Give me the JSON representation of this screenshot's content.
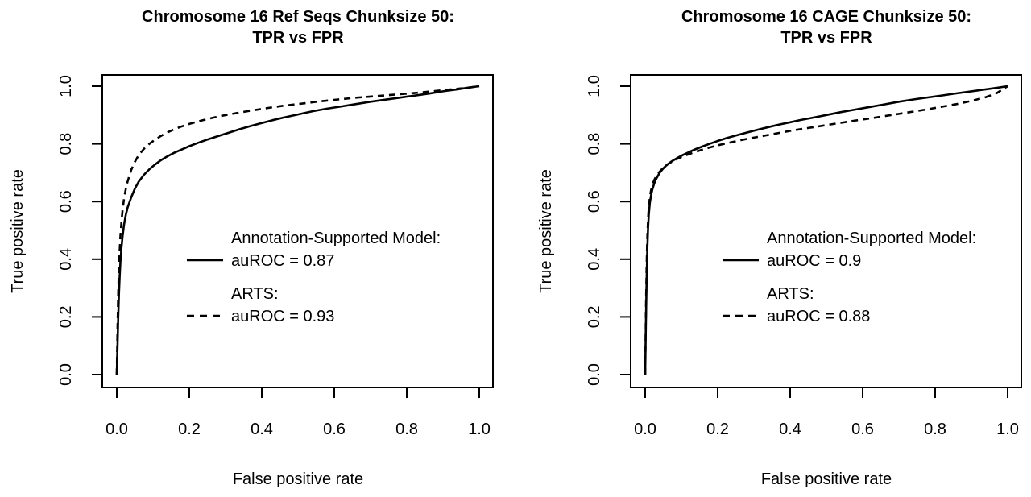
{
  "figure": {
    "background": "#ffffff",
    "ink_color": "#000000"
  },
  "chart_data": [
    {
      "type": "line",
      "title": "Chromosome 16 Ref Seqs Chunksize 50:",
      "subtitle": "TPR vs FPR",
      "xlabel": "False positive rate",
      "ylabel": "True positive rate",
      "xlim": [
        0.0,
        1.0
      ],
      "ylim": [
        0.0,
        1.0
      ],
      "x_tick_labels": [
        "0.0",
        "0.2",
        "0.4",
        "0.6",
        "0.8",
        "1.0"
      ],
      "y_tick_labels": [
        "0.0",
        "0.2",
        "0.4",
        "0.6",
        "0.8",
        "1.0"
      ],
      "grid": false,
      "legend_position": "center-right-inside",
      "legend": {
        "entries": [
          {
            "label": "Annotation-Supported Model:",
            "value": "auROC = 0.87",
            "line_style": "solid"
          },
          {
            "label": "ARTS:",
            "value": "auROC = 0.93",
            "line_style": "dashed"
          }
        ]
      },
      "series": [
        {
          "name": "Annotation-Supported Model",
          "auROC": 0.87,
          "line_style": "solid",
          "points": [
            [
              0,
              0
            ],
            [
              0.002,
              0.1
            ],
            [
              0.004,
              0.2
            ],
            [
              0.006,
              0.28
            ],
            [
              0.008,
              0.34
            ],
            [
              0.01,
              0.39
            ],
            [
              0.013,
              0.44
            ],
            [
              0.016,
              0.48
            ],
            [
              0.02,
              0.52
            ],
            [
              0.025,
              0.555
            ],
            [
              0.03,
              0.58
            ],
            [
              0.04,
              0.615
            ],
            [
              0.05,
              0.645
            ],
            [
              0.06,
              0.668
            ],
            [
              0.075,
              0.693
            ],
            [
              0.09,
              0.712
            ],
            [
              0.105,
              0.728
            ],
            [
              0.12,
              0.742
            ],
            [
              0.14,
              0.757
            ],
            [
              0.16,
              0.77
            ],
            [
              0.18,
              0.781
            ],
            [
              0.2,
              0.792
            ],
            [
              0.225,
              0.804
            ],
            [
              0.25,
              0.815
            ],
            [
              0.28,
              0.827
            ],
            [
              0.31,
              0.839
            ],
            [
              0.34,
              0.851
            ],
            [
              0.37,
              0.862
            ],
            [
              0.4,
              0.872
            ],
            [
              0.43,
              0.882
            ],
            [
              0.46,
              0.891
            ],
            [
              0.5,
              0.902
            ],
            [
              0.54,
              0.913
            ],
            [
              0.58,
              0.922
            ],
            [
              0.62,
              0.93
            ],
            [
              0.66,
              0.938
            ],
            [
              0.7,
              0.946
            ],
            [
              0.74,
              0.953
            ],
            [
              0.78,
              0.96
            ],
            [
              0.82,
              0.967
            ],
            [
              0.86,
              0.974
            ],
            [
              0.9,
              0.982
            ],
            [
              0.94,
              0.989
            ],
            [
              0.97,
              0.995
            ],
            [
              1,
              1
            ]
          ]
        },
        {
          "name": "ARTS",
          "auROC": 0.93,
          "line_style": "dashed",
          "points": [
            [
              0,
              0
            ],
            [
              0.002,
              0.16
            ],
            [
              0.004,
              0.28
            ],
            [
              0.006,
              0.37
            ],
            [
              0.008,
              0.43
            ],
            [
              0.01,
              0.48
            ],
            [
              0.013,
              0.53
            ],
            [
              0.016,
              0.57
            ],
            [
              0.02,
              0.61
            ],
            [
              0.025,
              0.645
            ],
            [
              0.03,
              0.67
            ],
            [
              0.04,
              0.71
            ],
            [
              0.05,
              0.738
            ],
            [
              0.06,
              0.76
            ],
            [
              0.075,
              0.783
            ],
            [
              0.09,
              0.8
            ],
            [
              0.105,
              0.814
            ],
            [
              0.12,
              0.826
            ],
            [
              0.14,
              0.84
            ],
            [
              0.16,
              0.851
            ],
            [
              0.18,
              0.861
            ],
            [
              0.2,
              0.869
            ],
            [
              0.225,
              0.878
            ],
            [
              0.25,
              0.886
            ],
            [
              0.28,
              0.895
            ],
            [
              0.31,
              0.902
            ],
            [
              0.34,
              0.909
            ],
            [
              0.37,
              0.915
            ],
            [
              0.4,
              0.921
            ],
            [
              0.43,
              0.927
            ],
            [
              0.46,
              0.932
            ],
            [
              0.5,
              0.938
            ],
            [
              0.54,
              0.944
            ],
            [
              0.58,
              0.95
            ],
            [
              0.62,
              0.955
            ],
            [
              0.66,
              0.96
            ],
            [
              0.7,
              0.964
            ],
            [
              0.74,
              0.968
            ],
            [
              0.78,
              0.972
            ],
            [
              0.82,
              0.976
            ],
            [
              0.86,
              0.981
            ],
            [
              0.9,
              0.986
            ],
            [
              0.94,
              0.991
            ],
            [
              0.97,
              0.995
            ],
            [
              1,
              1
            ]
          ]
        }
      ]
    },
    {
      "type": "line",
      "title": "Chromosome 16 CAGE Chunksize 50:",
      "subtitle": "TPR vs FPR",
      "xlabel": "False positive rate",
      "ylabel": "True positive rate",
      "xlim": [
        0.0,
        1.0
      ],
      "ylim": [
        0.0,
        1.0
      ],
      "x_tick_labels": [
        "0.0",
        "0.2",
        "0.4",
        "0.6",
        "0.8",
        "1.0"
      ],
      "y_tick_labels": [
        "0.0",
        "0.2",
        "0.4",
        "0.6",
        "0.8",
        "1.0"
      ],
      "grid": false,
      "legend_position": "center-right-inside",
      "legend": {
        "entries": [
          {
            "label": "Annotation-Supported Model:",
            "value": "auROC = 0.9",
            "line_style": "solid"
          },
          {
            "label": "ARTS:",
            "value": "auROC = 0.88",
            "line_style": "dashed"
          }
        ]
      },
      "series": [
        {
          "name": "Annotation-Supported Model",
          "auROC": 0.9,
          "line_style": "solid",
          "points": [
            [
              0,
              0
            ],
            [
              0.002,
              0.18
            ],
            [
              0.004,
              0.33
            ],
            [
              0.006,
              0.44
            ],
            [
              0.008,
              0.51
            ],
            [
              0.01,
              0.555
            ],
            [
              0.013,
              0.595
            ],
            [
              0.016,
              0.62
            ],
            [
              0.02,
              0.643
            ],
            [
              0.025,
              0.663
            ],
            [
              0.03,
              0.678
            ],
            [
              0.04,
              0.7
            ],
            [
              0.05,
              0.715
            ],
            [
              0.06,
              0.727
            ],
            [
              0.075,
              0.741
            ],
            [
              0.09,
              0.752
            ],
            [
              0.105,
              0.762
            ],
            [
              0.12,
              0.771
            ],
            [
              0.14,
              0.782
            ],
            [
              0.16,
              0.792
            ],
            [
              0.18,
              0.801
            ],
            [
              0.2,
              0.81
            ],
            [
              0.225,
              0.82
            ],
            [
              0.25,
              0.829
            ],
            [
              0.28,
              0.839
            ],
            [
              0.31,
              0.849
            ],
            [
              0.34,
              0.858
            ],
            [
              0.37,
              0.867
            ],
            [
              0.4,
              0.875
            ],
            [
              0.43,
              0.883
            ],
            [
              0.46,
              0.89
            ],
            [
              0.5,
              0.9
            ],
            [
              0.54,
              0.91
            ],
            [
              0.58,
              0.919
            ],
            [
              0.62,
              0.928
            ],
            [
              0.66,
              0.937
            ],
            [
              0.7,
              0.946
            ],
            [
              0.74,
              0.954
            ],
            [
              0.78,
              0.961
            ],
            [
              0.82,
              0.968
            ],
            [
              0.86,
              0.975
            ],
            [
              0.9,
              0.982
            ],
            [
              0.94,
              0.989
            ],
            [
              0.97,
              0.994
            ],
            [
              1,
              1
            ]
          ]
        },
        {
          "name": "ARTS",
          "auROC": 0.88,
          "line_style": "dashed",
          "points": [
            [
              0,
              0
            ],
            [
              0.002,
              0.22
            ],
            [
              0.004,
              0.38
            ],
            [
              0.006,
              0.48
            ],
            [
              0.008,
              0.54
            ],
            [
              0.01,
              0.58
            ],
            [
              0.013,
              0.615
            ],
            [
              0.016,
              0.638
            ],
            [
              0.02,
              0.658
            ],
            [
              0.025,
              0.675
            ],
            [
              0.03,
              0.687
            ],
            [
              0.04,
              0.704
            ],
            [
              0.05,
              0.717
            ],
            [
              0.06,
              0.727
            ],
            [
              0.075,
              0.739
            ],
            [
              0.09,
              0.749
            ],
            [
              0.105,
              0.757
            ],
            [
              0.12,
              0.764
            ],
            [
              0.14,
              0.773
            ],
            [
              0.16,
              0.781
            ],
            [
              0.18,
              0.788
            ],
            [
              0.2,
              0.795
            ],
            [
              0.225,
              0.802
            ],
            [
              0.25,
              0.809
            ],
            [
              0.28,
              0.817
            ],
            [
              0.31,
              0.824
            ],
            [
              0.34,
              0.831
            ],
            [
              0.37,
              0.838
            ],
            [
              0.4,
              0.845
            ],
            [
              0.43,
              0.851
            ],
            [
              0.46,
              0.857
            ],
            [
              0.5,
              0.865
            ],
            [
              0.54,
              0.873
            ],
            [
              0.58,
              0.881
            ],
            [
              0.62,
              0.888
            ],
            [
              0.66,
              0.896
            ],
            [
              0.7,
              0.904
            ],
            [
              0.74,
              0.912
            ],
            [
              0.78,
              0.92
            ],
            [
              0.82,
              0.929
            ],
            [
              0.86,
              0.938
            ],
            [
              0.9,
              0.949
            ],
            [
              0.94,
              0.962
            ],
            [
              0.97,
              0.976
            ],
            [
              1,
              1
            ]
          ]
        }
      ]
    }
  ]
}
